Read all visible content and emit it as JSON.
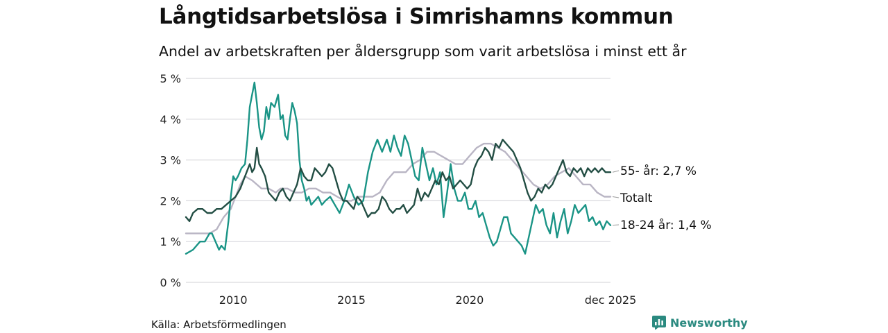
{
  "chart_data": {
    "type": "line",
    "title": "Långtidsarbetslösa i Simrishamns kommun",
    "subtitle": "Andel av arbetskraften per åldersgrupp som varit arbetslösa i minst ett år",
    "xlabel": "",
    "ylabel": "",
    "x_ticks": [
      "2010",
      "2015",
      "2020",
      "dec 2025"
    ],
    "x_tick_values": [
      2010,
      2015,
      2020,
      2025.96
    ],
    "y_ticks": [
      "0 %",
      "1 %",
      "2 %",
      "3 %",
      "4 %",
      "5 %"
    ],
    "y_tick_values": [
      0,
      1,
      2,
      3,
      4,
      5
    ],
    "xlim": [
      2008.0,
      2025.96
    ],
    "ylim": [
      0,
      5
    ],
    "series": [
      {
        "name": "Totalt",
        "end_label": "Totalt",
        "color": "#b9b5c4",
        "x": [
          2008.0,
          2008.5,
          2009.0,
          2009.3,
          2009.6,
          2009.9,
          2010.1,
          2010.3,
          2010.5,
          2010.8,
          2011.0,
          2011.2,
          2011.5,
          2011.8,
          2012.0,
          2012.3,
          2012.6,
          2012.9,
          2013.2,
          2013.5,
          2013.8,
          2014.1,
          2014.4,
          2014.7,
          2015.0,
          2015.3,
          2015.6,
          2015.9,
          2016.2,
          2016.5,
          2016.8,
          2017.0,
          2017.3,
          2017.6,
          2017.9,
          2018.2,
          2018.5,
          2018.8,
          2019.1,
          2019.4,
          2019.7,
          2020.0,
          2020.3,
          2020.6,
          2020.9,
          2021.2,
          2021.5,
          2021.8,
          2022.1,
          2022.4,
          2022.7,
          2023.0,
          2023.3,
          2023.6,
          2023.9,
          2024.2,
          2024.5,
          2024.8,
          2025.1,
          2025.4,
          2025.7,
          2025.96
        ],
        "y": [
          1.2,
          1.2,
          1.2,
          1.3,
          1.6,
          1.8,
          2.1,
          2.4,
          2.6,
          2.5,
          2.4,
          2.3,
          2.3,
          2.2,
          2.3,
          2.3,
          2.2,
          2.2,
          2.3,
          2.3,
          2.2,
          2.2,
          2.1,
          2.0,
          2.0,
          2.1,
          2.1,
          2.1,
          2.2,
          2.5,
          2.7,
          2.7,
          2.7,
          2.9,
          3.0,
          3.2,
          3.2,
          3.1,
          3.0,
          2.9,
          2.9,
          3.1,
          3.3,
          3.4,
          3.4,
          3.3,
          3.2,
          3.0,
          2.8,
          2.6,
          2.4,
          2.3,
          2.4,
          2.6,
          2.7,
          2.8,
          2.6,
          2.4,
          2.4,
          2.2,
          2.1,
          2.1
        ]
      },
      {
        "name": "18-24 år",
        "end_label": "18-24 år: 1,4 %",
        "color": "#1a9486",
        "x": [
          2008.0,
          2008.3,
          2008.6,
          2008.8,
          2009.0,
          2009.1,
          2009.25,
          2009.4,
          2009.5,
          2009.65,
          2009.8,
          2009.9,
          2010.0,
          2010.1,
          2010.2,
          2010.35,
          2010.5,
          2010.6,
          2010.7,
          2010.8,
          2010.9,
          2011.0,
          2011.1,
          2011.2,
          2011.3,
          2011.4,
          2011.5,
          2011.6,
          2011.75,
          2011.9,
          2012.0,
          2012.1,
          2012.2,
          2012.3,
          2012.4,
          2012.5,
          2012.6,
          2012.7,
          2012.8,
          2012.9,
          2013.0,
          2013.1,
          2013.2,
          2013.3,
          2013.45,
          2013.6,
          2013.75,
          2013.9,
          2014.1,
          2014.3,
          2014.5,
          2014.7,
          2014.9,
          2015.1,
          2015.3,
          2015.5,
          2015.7,
          2015.9,
          2016.1,
          2016.3,
          2016.5,
          2016.65,
          2016.8,
          2016.95,
          2017.1,
          2017.25,
          2017.4,
          2017.55,
          2017.7,
          2017.85,
          2018.0,
          2018.15,
          2018.3,
          2018.45,
          2018.6,
          2018.75,
          2018.9,
          2019.05,
          2019.2,
          2019.35,
          2019.5,
          2019.65,
          2019.8,
          2019.95,
          2020.1,
          2020.25,
          2020.4,
          2020.55,
          2020.7,
          2020.85,
          2021.0,
          2021.15,
          2021.3,
          2021.45,
          2021.6,
          2021.75,
          2021.9,
          2022.05,
          2022.2,
          2022.35,
          2022.5,
          2022.65,
          2022.8,
          2022.95,
          2023.1,
          2023.25,
          2023.4,
          2023.55,
          2023.7,
          2023.85,
          2024.0,
          2024.15,
          2024.3,
          2024.45,
          2024.6,
          2024.75,
          2024.9,
          2025.05,
          2025.2,
          2025.35,
          2025.5,
          2025.65,
          2025.8,
          2025.96
        ],
        "y": [
          0.7,
          0.8,
          1.0,
          1.0,
          1.2,
          1.2,
          1.0,
          0.8,
          0.9,
          0.8,
          1.5,
          2.1,
          2.6,
          2.5,
          2.6,
          2.8,
          2.9,
          3.5,
          4.3,
          4.6,
          4.9,
          4.4,
          3.8,
          3.5,
          3.7,
          4.3,
          4.0,
          4.4,
          4.3,
          4.6,
          4.0,
          4.1,
          3.6,
          3.5,
          4.0,
          4.4,
          4.2,
          3.9,
          3.0,
          2.5,
          2.3,
          2.0,
          2.1,
          1.9,
          2.0,
          2.1,
          1.9,
          2.0,
          2.1,
          1.9,
          1.7,
          2.0,
          2.4,
          2.1,
          1.9,
          2.0,
          2.7,
          3.2,
          3.5,
          3.2,
          3.5,
          3.2,
          3.6,
          3.3,
          3.1,
          3.6,
          3.4,
          3.0,
          2.6,
          2.5,
          3.3,
          2.9,
          2.5,
          2.8,
          2.4,
          2.7,
          1.6,
          2.2,
          2.9,
          2.3,
          2.0,
          2.0,
          2.2,
          1.8,
          1.8,
          2.0,
          1.6,
          1.7,
          1.4,
          1.1,
          0.9,
          1.0,
          1.3,
          1.6,
          1.6,
          1.2,
          1.1,
          1.0,
          0.9,
          0.7,
          1.1,
          1.5,
          1.9,
          1.7,
          1.8,
          1.4,
          1.2,
          1.7,
          1.1,
          1.5,
          1.8,
          1.2,
          1.5,
          1.9,
          1.7,
          1.8,
          1.9,
          1.5,
          1.6,
          1.4,
          1.5,
          1.3,
          1.5,
          1.4
        ]
      },
      {
        "name": "55- år",
        "end_label": "55- år: 2,7 %",
        "color": "#234e44",
        "x": [
          2008.0,
          2008.15,
          2008.3,
          2008.5,
          2008.7,
          2008.9,
          2009.1,
          2009.3,
          2009.5,
          2009.7,
          2009.9,
          2010.1,
          2010.3,
          2010.5,
          2010.7,
          2010.8,
          2010.9,
          2011.0,
          2011.1,
          2011.2,
          2011.35,
          2011.5,
          2011.65,
          2011.8,
          2011.95,
          2012.1,
          2012.25,
          2012.4,
          2012.55,
          2012.7,
          2012.85,
          2013.0,
          2013.15,
          2013.3,
          2013.45,
          2013.6,
          2013.75,
          2013.9,
          2014.05,
          2014.2,
          2014.35,
          2014.5,
          2014.65,
          2014.8,
          2014.95,
          2015.1,
          2015.25,
          2015.4,
          2015.55,
          2015.7,
          2015.85,
          2016.0,
          2016.15,
          2016.3,
          2016.45,
          2016.6,
          2016.75,
          2016.9,
          2017.05,
          2017.2,
          2017.35,
          2017.5,
          2017.65,
          2017.8,
          2017.95,
          2018.1,
          2018.25,
          2018.4,
          2018.55,
          2018.7,
          2018.85,
          2019.0,
          2019.15,
          2019.3,
          2019.45,
          2019.6,
          2019.75,
          2019.9,
          2020.05,
          2020.2,
          2020.35,
          2020.5,
          2020.65,
          2020.8,
          2020.95,
          2021.1,
          2021.25,
          2021.4,
          2021.55,
          2021.7,
          2021.85,
          2022.0,
          2022.15,
          2022.3,
          2022.45,
          2022.6,
          2022.75,
          2022.9,
          2023.05,
          2023.2,
          2023.35,
          2023.5,
          2023.65,
          2023.8,
          2023.95,
          2024.1,
          2024.25,
          2024.4,
          2024.55,
          2024.7,
          2024.85,
          2025.0,
          2025.15,
          2025.3,
          2025.45,
          2025.6,
          2025.75,
          2025.96
        ],
        "y": [
          1.6,
          1.5,
          1.7,
          1.8,
          1.8,
          1.7,
          1.7,
          1.8,
          1.8,
          1.9,
          2.0,
          2.1,
          2.3,
          2.6,
          2.9,
          2.7,
          2.8,
          3.3,
          2.9,
          2.8,
          2.6,
          2.2,
          2.1,
          2.0,
          2.2,
          2.3,
          2.1,
          2.0,
          2.2,
          2.4,
          2.8,
          2.6,
          2.5,
          2.5,
          2.8,
          2.7,
          2.6,
          2.7,
          2.9,
          2.8,
          2.5,
          2.2,
          2.0,
          2.0,
          1.9,
          1.8,
          2.1,
          2.0,
          1.8,
          1.6,
          1.7,
          1.7,
          1.8,
          2.1,
          2.0,
          1.8,
          1.7,
          1.8,
          1.8,
          1.9,
          1.7,
          1.8,
          1.9,
          2.3,
          2.0,
          2.2,
          2.1,
          2.3,
          2.5,
          2.4,
          2.7,
          2.5,
          2.6,
          2.3,
          2.4,
          2.5,
          2.4,
          2.3,
          2.4,
          2.8,
          3.0,
          3.1,
          3.3,
          3.2,
          3.0,
          3.4,
          3.3,
          3.5,
          3.4,
          3.3,
          3.2,
          3.0,
          2.8,
          2.5,
          2.2,
          2.0,
          2.1,
          2.3,
          2.2,
          2.4,
          2.3,
          2.4,
          2.6,
          2.8,
          3.0,
          2.7,
          2.6,
          2.8,
          2.7,
          2.8,
          2.6,
          2.8,
          2.7,
          2.8,
          2.7,
          2.8,
          2.7,
          2.7
        ]
      }
    ]
  },
  "source_text": "Källa: Arbetsförmedlingen",
  "brand_name": "Newsworthy",
  "icon": "newsworthy-logo-icon",
  "colors": {
    "grid": "#d9d9de",
    "axis_text": "#222222",
    "brand": "#2b8a80"
  }
}
